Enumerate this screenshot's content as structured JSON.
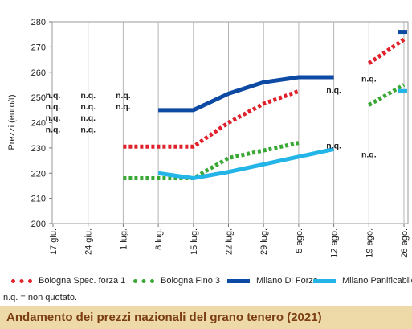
{
  "chart_data": {
    "type": "line",
    "title": "Andamento dei prezzi nazionali del grano tenero (2021)",
    "ylabel": "Prezzi (euro/t)",
    "xlabel": "",
    "ylim": [
      200,
      280
    ],
    "yticks": [
      "200",
      "210",
      "220",
      "230",
      "240",
      "250",
      "260",
      "270",
      "280"
    ],
    "categories": [
      "17 giu.",
      "24 giu.",
      "1 lug.",
      "8 lug.",
      "15 lug.",
      "22 lug.",
      "29 lug.",
      "5 ago.",
      "12 ago.",
      "19 ago.",
      "26 ago."
    ],
    "grid": "vertical",
    "legend_position": "bottom",
    "series": [
      {
        "name": "Bologna Spec. forza 1",
        "color": "#e0202a",
        "style": "dotted",
        "values": [
          null,
          null,
          230.5,
          230.5,
          230.5,
          240,
          247.5,
          252.5,
          null,
          263.5,
          273
        ]
      },
      {
        "name": "Bologna Fino 3",
        "color": "#3aa835",
        "style": "dotted",
        "values": [
          null,
          null,
          218,
          218,
          218,
          226,
          229,
          232,
          null,
          247,
          255
        ]
      },
      {
        "name": "Milano Di Forza",
        "color": "#0d4aa3",
        "style": "solid",
        "values": [
          null,
          null,
          null,
          245,
          245,
          251.5,
          256,
          258,
          258,
          null,
          276
        ]
      },
      {
        "name": "Milano Panificabile",
        "color": "#23b4e8",
        "style": "solid",
        "values": [
          null,
          null,
          null,
          220,
          218,
          220.5,
          223.5,
          226.5,
          229.5,
          null,
          252.5
        ]
      }
    ],
    "annotations": [
      {
        "text": "n.q.",
        "x": 0,
        "y": 251
      },
      {
        "text": "n.q.",
        "x": 0,
        "y": 246.5
      },
      {
        "text": "n.q.",
        "x": 0,
        "y": 242
      },
      {
        "text": "n.q.",
        "x": 0,
        "y": 237.5
      },
      {
        "text": "n.q.",
        "x": 1,
        "y": 251
      },
      {
        "text": "n.q.",
        "x": 1,
        "y": 246.5
      },
      {
        "text": "n.q.",
        "x": 1,
        "y": 242
      },
      {
        "text": "n.q.",
        "x": 1,
        "y": 237.5
      },
      {
        "text": "n.q.",
        "x": 2,
        "y": 251
      },
      {
        "text": "n.q.",
        "x": 2,
        "y": 246.5
      },
      {
        "text": "n.q.",
        "x": 8,
        "y": 253
      },
      {
        "text": "n.q.",
        "x": 8,
        "y": 231
      },
      {
        "text": "n.q.",
        "x": 9,
        "y": 257.5
      },
      {
        "text": "n.q.",
        "x": 9,
        "y": 227.5
      }
    ]
  },
  "footnote": "n.q. = non quotato."
}
